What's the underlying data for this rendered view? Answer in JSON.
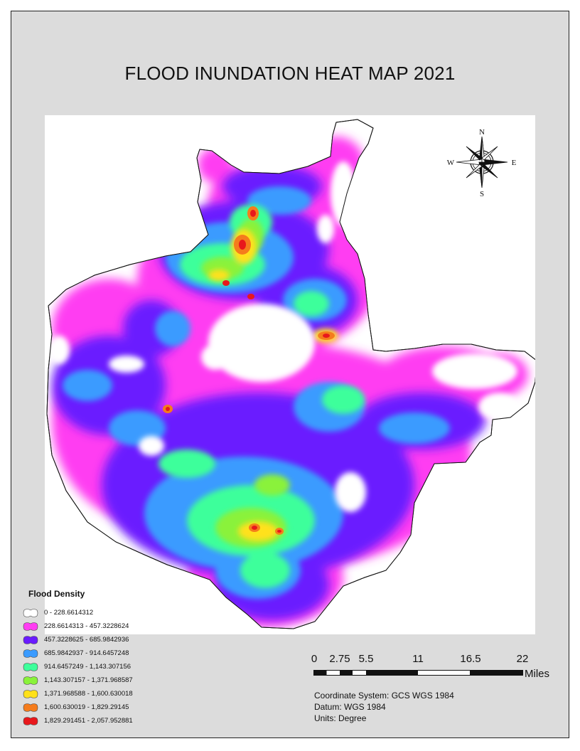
{
  "title": "FLOOD INUNDATION HEAT MAP 2021",
  "compass": {
    "north": "N",
    "south": "S",
    "east": "E",
    "west": "W"
  },
  "legend": {
    "title": "Flood Density",
    "items": [
      {
        "label": "0 - 228.6614312",
        "color": "#ffffff"
      },
      {
        "label": "228.6614313 - 457.3228624",
        "color": "#ff3df2"
      },
      {
        "label": "457.3228625 - 685.9842936",
        "color": "#6a1bff"
      },
      {
        "label": "685.9842937 - 914.6457248",
        "color": "#3a9bff"
      },
      {
        "label": "914.6457249 - 1,143.307156",
        "color": "#3dff9b"
      },
      {
        "label": "1,143.307157 - 1,371.968587",
        "color": "#8af23a"
      },
      {
        "label": "1,371.968588 - 1,600.630018",
        "color": "#ffe11a"
      },
      {
        "label": "1,600.630019 - 1,829.29145",
        "color": "#f57c1c"
      },
      {
        "label": "1,829.291451 - 2,057.952881",
        "color": "#e8181c"
      }
    ]
  },
  "scale": {
    "labels": [
      "0",
      "2.75",
      "5.5",
      "11",
      "16.5",
      "22"
    ],
    "units": "Miles"
  },
  "info": {
    "coordinate_system": "Coordinate System: GCS WGS 1984",
    "datum": "Datum: WGS 1984",
    "units": "Units: Degree"
  }
}
